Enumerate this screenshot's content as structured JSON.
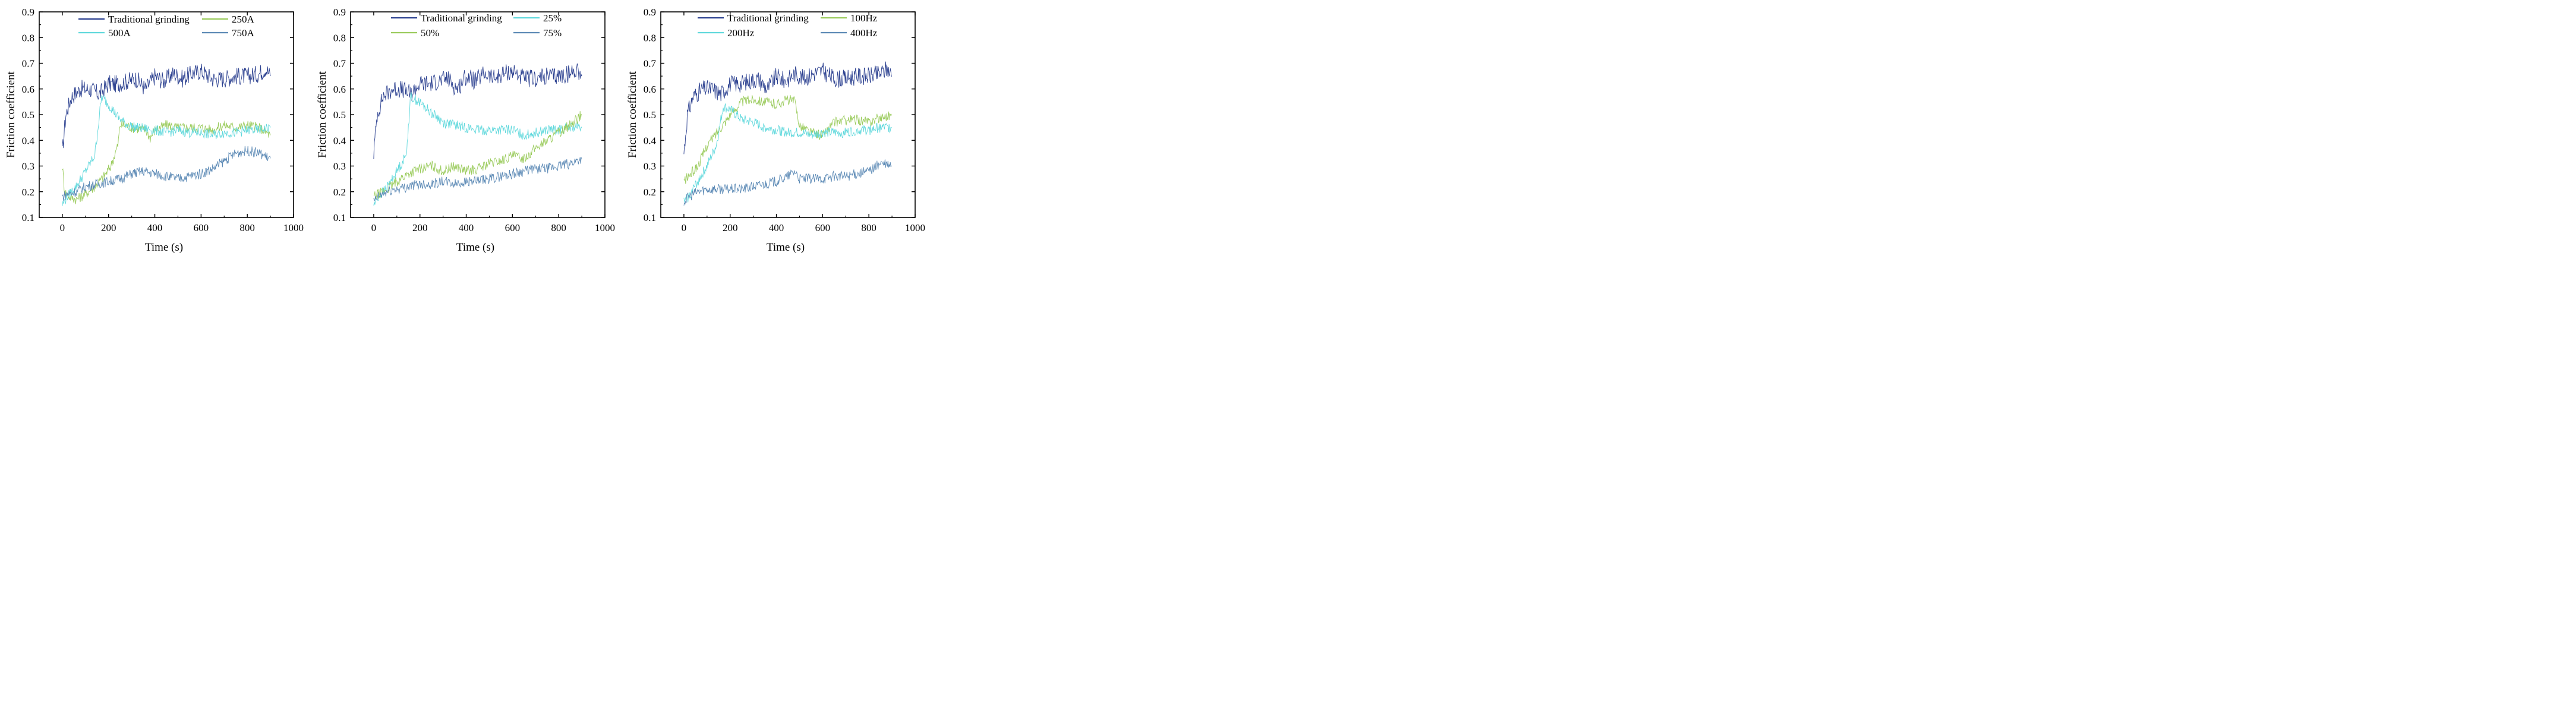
{
  "chart_data": [
    {
      "type": "line",
      "id": "panel-current",
      "xlabel": "Time (s)",
      "ylabel": "Friction coefficient",
      "xlim": [
        -100,
        1000
      ],
      "ylim": [
        0.1,
        0.9
      ],
      "xticks": [
        0,
        200,
        400,
        600,
        800,
        1000
      ],
      "yticks": [
        0.1,
        0.2,
        0.3,
        0.4,
        0.5,
        0.6,
        0.7,
        0.8,
        0.9
      ],
      "xtick_labels": [
        "0",
        "200",
        "400",
        "600",
        "800",
        "1000"
      ],
      "ytick_labels": [
        "0.1",
        "0.2",
        "0.3",
        "0.4",
        "0.5",
        "0.6",
        "0.7",
        "0.8",
        "0.9"
      ],
      "legend_position": "top",
      "series": [
        {
          "name": "Traditional grinding",
          "color": "#2a3f8f",
          "x": [
            0,
            15,
            40,
            80,
            120,
            160,
            200,
            240,
            280,
            320,
            360,
            400,
            440,
            480,
            520,
            560,
            600,
            650,
            700,
            750,
            800,
            850,
            880,
            900
          ],
          "y": [
            0.35,
            0.5,
            0.57,
            0.6,
            0.6,
            0.58,
            0.62,
            0.62,
            0.63,
            0.64,
            0.6,
            0.65,
            0.63,
            0.66,
            0.64,
            0.66,
            0.67,
            0.64,
            0.64,
            0.65,
            0.65,
            0.66,
            0.68,
            0.65
          ]
        },
        {
          "name": "250A",
          "color": "#9acb5c",
          "x": [
            0,
            10,
            30,
            60,
            100,
            140,
            180,
            210,
            240,
            250,
            270,
            300,
            360,
            380,
            400,
            450,
            500,
            550,
            600,
            650,
            700,
            750,
            800,
            850,
            900
          ],
          "y": [
            0.3,
            0.2,
            0.18,
            0.17,
            0.19,
            0.22,
            0.26,
            0.3,
            0.38,
            0.46,
            0.46,
            0.45,
            0.44,
            0.41,
            0.44,
            0.46,
            0.45,
            0.45,
            0.45,
            0.44,
            0.46,
            0.45,
            0.46,
            0.45,
            0.42
          ]
        },
        {
          "name": "500A",
          "color": "#5fd8dc",
          "x": [
            0,
            20,
            60,
            100,
            140,
            170,
            190,
            210,
            240,
            280,
            320,
            400,
            450,
            500,
            550,
            600,
            650,
            700,
            750,
            800,
            850,
            900
          ],
          "y": [
            0.15,
            0.18,
            0.22,
            0.28,
            0.34,
            0.57,
            0.55,
            0.53,
            0.49,
            0.46,
            0.45,
            0.44,
            0.43,
            0.44,
            0.43,
            0.43,
            0.42,
            0.43,
            0.43,
            0.44,
            0.44,
            0.45
          ]
        },
        {
          "name": "750A",
          "color": "#5b89b5",
          "x": [
            0,
            20,
            60,
            100,
            150,
            200,
            250,
            300,
            350,
            400,
            450,
            500,
            550,
            600,
            650,
            700,
            750,
            800,
            850,
            900
          ],
          "y": [
            0.18,
            0.19,
            0.2,
            0.22,
            0.23,
            0.24,
            0.25,
            0.27,
            0.28,
            0.27,
            0.26,
            0.25,
            0.26,
            0.27,
            0.29,
            0.32,
            0.35,
            0.36,
            0.35,
            0.33
          ]
        }
      ]
    },
    {
      "type": "line",
      "id": "panel-duty",
      "xlabel": "Time (s)",
      "ylabel": "Friction coefficient",
      "xlim": [
        -100,
        1000
      ],
      "ylim": [
        0.1,
        0.9
      ],
      "xticks": [
        0,
        200,
        400,
        600,
        800,
        1000
      ],
      "yticks": [
        0.1,
        0.2,
        0.3,
        0.4,
        0.5,
        0.6,
        0.7,
        0.8,
        0.9
      ],
      "xtick_labels": [
        "0",
        "200",
        "400",
        "600",
        "800",
        "1000"
      ],
      "ytick_labels": [
        "0.1",
        "0.2",
        "0.3",
        "0.4",
        "0.5",
        "0.6",
        "0.7",
        "0.8",
        "0.9"
      ],
      "legend_position": "top",
      "series": [
        {
          "name": "Traditional grinding",
          "color": "#2a3f8f",
          "x": [
            0,
            15,
            40,
            80,
            120,
            160,
            200,
            240,
            280,
            320,
            360,
            400,
            440,
            480,
            520,
            560,
            600,
            650,
            700,
            750,
            800,
            850,
            880,
            900
          ],
          "y": [
            0.35,
            0.5,
            0.57,
            0.6,
            0.6,
            0.58,
            0.62,
            0.62,
            0.63,
            0.64,
            0.6,
            0.65,
            0.63,
            0.66,
            0.64,
            0.66,
            0.67,
            0.64,
            0.64,
            0.65,
            0.65,
            0.66,
            0.68,
            0.65
          ]
        },
        {
          "name": "25%",
          "color": "#5fd8dc",
          "x": [
            0,
            20,
            60,
            100,
            140,
            160,
            180,
            220,
            260,
            300,
            350,
            400,
            450,
            500,
            550,
            600,
            650,
            700,
            750,
            800,
            850,
            900
          ],
          "y": [
            0.15,
            0.18,
            0.22,
            0.28,
            0.34,
            0.57,
            0.56,
            0.53,
            0.5,
            0.47,
            0.46,
            0.45,
            0.44,
            0.44,
            0.44,
            0.44,
            0.42,
            0.43,
            0.44,
            0.44,
            0.45,
            0.45
          ]
        },
        {
          "name": "50%",
          "color": "#9acb5c",
          "x": [
            0,
            20,
            60,
            100,
            150,
            200,
            250,
            300,
            350,
            400,
            450,
            500,
            550,
            600,
            650,
            700,
            750,
            800,
            850,
            900
          ],
          "y": [
            0.18,
            0.19,
            0.21,
            0.24,
            0.27,
            0.29,
            0.3,
            0.28,
            0.3,
            0.28,
            0.29,
            0.31,
            0.32,
            0.34,
            0.33,
            0.37,
            0.4,
            0.43,
            0.46,
            0.5
          ]
        },
        {
          "name": "75%",
          "color": "#5b89b5",
          "x": [
            0,
            20,
            60,
            100,
            150,
            200,
            250,
            300,
            350,
            400,
            450,
            500,
            550,
            600,
            650,
            700,
            750,
            800,
            850,
            900
          ],
          "y": [
            0.16,
            0.18,
            0.2,
            0.21,
            0.22,
            0.23,
            0.23,
            0.24,
            0.23,
            0.24,
            0.24,
            0.25,
            0.26,
            0.27,
            0.28,
            0.29,
            0.29,
            0.3,
            0.31,
            0.33
          ]
        }
      ]
    },
    {
      "type": "line",
      "id": "panel-frequency",
      "xlabel": "Time (s)",
      "ylabel": "Friction coefficient",
      "xlim": [
        -100,
        1000
      ],
      "ylim": [
        0.1,
        0.9
      ],
      "xticks": [
        0,
        200,
        400,
        600,
        800,
        1000
      ],
      "yticks": [
        0.1,
        0.2,
        0.3,
        0.4,
        0.5,
        0.6,
        0.7,
        0.8,
        0.9
      ],
      "xtick_labels": [
        "0",
        "200",
        "400",
        "600",
        "800",
        "1000"
      ],
      "ytick_labels": [
        "0.1",
        "0.2",
        "0.3",
        "0.4",
        "0.5",
        "0.6",
        "0.7",
        "0.8",
        "0.9"
      ],
      "legend_position": "top",
      "series": [
        {
          "name": "Traditional grinding",
          "color": "#2a3f8f",
          "x": [
            0,
            15,
            40,
            80,
            120,
            160,
            200,
            240,
            280,
            320,
            360,
            400,
            440,
            480,
            520,
            560,
            600,
            650,
            700,
            750,
            800,
            850,
            880,
            900
          ],
          "y": [
            0.35,
            0.5,
            0.57,
            0.6,
            0.6,
            0.58,
            0.62,
            0.62,
            0.63,
            0.64,
            0.6,
            0.65,
            0.63,
            0.66,
            0.64,
            0.66,
            0.67,
            0.64,
            0.64,
            0.65,
            0.65,
            0.66,
            0.68,
            0.65
          ]
        },
        {
          "name": "100Hz",
          "color": "#9acb5c",
          "x": [
            0,
            20,
            60,
            100,
            150,
            200,
            250,
            300,
            350,
            400,
            450,
            480,
            500,
            550,
            600,
            650,
            700,
            750,
            800,
            850,
            900
          ],
          "y": [
            0.24,
            0.26,
            0.3,
            0.38,
            0.44,
            0.5,
            0.55,
            0.56,
            0.55,
            0.54,
            0.56,
            0.55,
            0.46,
            0.43,
            0.42,
            0.47,
            0.48,
            0.48,
            0.47,
            0.49,
            0.5
          ]
        },
        {
          "name": "200Hz",
          "color": "#5fd8dc",
          "x": [
            0,
            20,
            60,
            100,
            140,
            170,
            200,
            250,
            300,
            350,
            400,
            450,
            500,
            550,
            600,
            650,
            700,
            750,
            800,
            850,
            900
          ],
          "y": [
            0.16,
            0.18,
            0.24,
            0.3,
            0.38,
            0.53,
            0.52,
            0.48,
            0.47,
            0.45,
            0.44,
            0.43,
            0.43,
            0.42,
            0.43,
            0.43,
            0.43,
            0.44,
            0.44,
            0.45,
            0.45
          ]
        },
        {
          "name": "400Hz",
          "color": "#5b89b5",
          "x": [
            0,
            20,
            60,
            100,
            150,
            200,
            250,
            300,
            350,
            400,
            450,
            480,
            500,
            550,
            600,
            650,
            700,
            750,
            800,
            850,
            900
          ],
          "y": [
            0.16,
            0.18,
            0.2,
            0.21,
            0.21,
            0.21,
            0.21,
            0.22,
            0.23,
            0.24,
            0.26,
            0.28,
            0.25,
            0.25,
            0.25,
            0.26,
            0.26,
            0.27,
            0.28,
            0.31,
            0.3
          ]
        }
      ]
    }
  ]
}
